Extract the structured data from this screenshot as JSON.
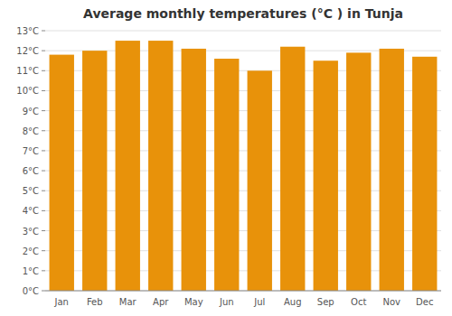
{
  "chart_data": {
    "type": "bar",
    "title": "Average monthly temperatures (°C ) in Tunja",
    "categories": [
      "Jan",
      "Feb",
      "Mar",
      "Apr",
      "May",
      "Jun",
      "Jul",
      "Aug",
      "Sep",
      "Oct",
      "Nov",
      "Dec"
    ],
    "values": [
      11.8,
      12.0,
      12.5,
      12.5,
      12.1,
      11.6,
      11.0,
      12.2,
      11.5,
      11.9,
      12.1,
      11.7
    ],
    "color": "#E8920A",
    "ylim": [
      0,
      13
    ],
    "yticks": [
      {
        "value": 0,
        "label": "0°C"
      },
      {
        "value": 1,
        "label": "1°C"
      },
      {
        "value": 2,
        "label": "2°C"
      },
      {
        "value": 3,
        "label": "3°C"
      },
      {
        "value": 4,
        "label": "4°C"
      },
      {
        "value": 5,
        "label": "5°C"
      },
      {
        "value": 6,
        "label": "6°C"
      },
      {
        "value": 7,
        "label": "7°C"
      },
      {
        "value": 8,
        "label": "8°C"
      },
      {
        "value": 9,
        "label": "9°C"
      },
      {
        "value": 10,
        "label": "10°C"
      },
      {
        "value": 11,
        "label": "11°C"
      },
      {
        "value": 12,
        "label": "12°C"
      },
      {
        "value": 13,
        "label": "13°C"
      }
    ],
    "grid": true
  }
}
